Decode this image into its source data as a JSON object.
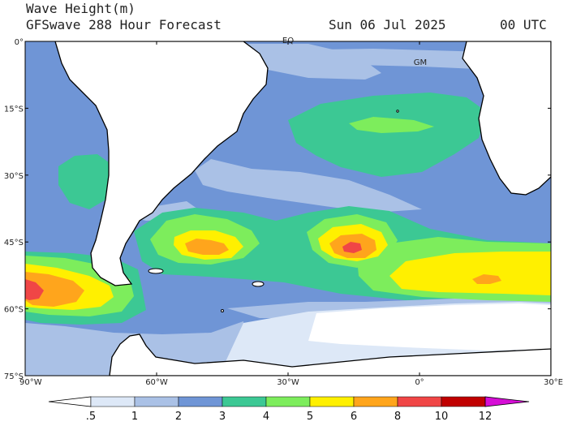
{
  "header": {
    "title": "Wave Height(m)",
    "subtitle": "GFSwave 288 Hour Forecast",
    "date": "Sun 06 Jul 2025",
    "utc": "00 UTC"
  },
  "map": {
    "lat_labels": [
      "0°",
      "15°S",
      "30°S",
      "45°S",
      "60°S",
      "75°S"
    ],
    "lon_labels": [
      "90°W",
      "60°W",
      "30°W",
      "0°",
      "30°E"
    ],
    "markers": [
      "EQ",
      "GM"
    ]
  },
  "colorbar": {
    "labels": [
      ".5",
      "1",
      "2",
      "3",
      "4",
      "5",
      "6",
      "8",
      "10",
      "12"
    ],
    "colors": [
      "#ffffff",
      "#dde8f7",
      "#aac1e6",
      "#6f95d6",
      "#3cc894",
      "#7ded5c",
      "#fff000",
      "#ffa51c",
      "#f04646",
      "#c00000",
      "#d60ed6"
    ]
  }
}
